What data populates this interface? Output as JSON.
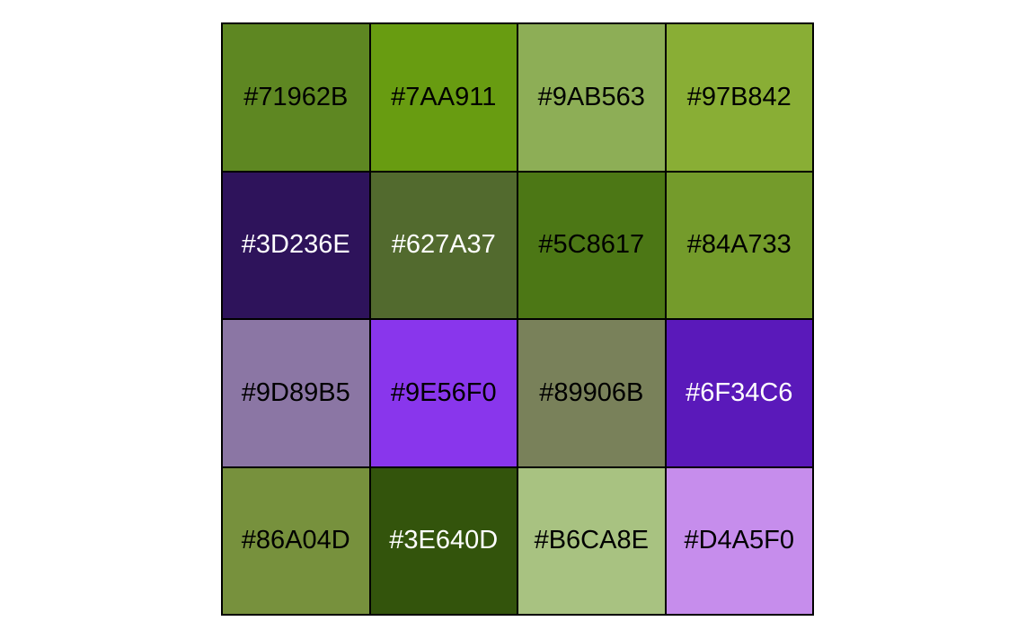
{
  "swatches": [
    {
      "label": "#71962B",
      "color": "#5E8722",
      "text_color": "#000000"
    },
    {
      "label": "#7AA911",
      "color": "#689C11",
      "text_color": "#000000"
    },
    {
      "label": "#9AB563",
      "color": "#8DAE56",
      "text_color": "#000000"
    },
    {
      "label": "#97B842",
      "color": "#89AE35",
      "text_color": "#000000"
    },
    {
      "label": "#3D236E",
      "color": "#2E135B",
      "text_color": "#FFFFFF"
    },
    {
      "label": "#627A37",
      "color": "#526A2E",
      "text_color": "#FFFFFF"
    },
    {
      "label": "#5C8617",
      "color": "#4C7715",
      "text_color": "#000000"
    },
    {
      "label": "#84A733",
      "color": "#749B2B",
      "text_color": "#000000"
    },
    {
      "label": "#9D89B5",
      "color": "#8B76A4",
      "text_color": "#000000"
    },
    {
      "label": "#9E56F0",
      "color": "#8936EC",
      "text_color": "#000000"
    },
    {
      "label": "#89906B",
      "color": "#79815A",
      "text_color": "#000000"
    },
    {
      "label": "#6F34C6",
      "color": "#5A19BA",
      "text_color": "#FFFFFF"
    },
    {
      "label": "#86A04D",
      "color": "#77913D",
      "text_color": "#000000"
    },
    {
      "label": "#3E640D",
      "color": "#33540C",
      "text_color": "#FFFFFF"
    },
    {
      "label": "#B6CA8E",
      "color": "#A8C281",
      "text_color": "#000000"
    },
    {
      "label": "#D4A5F0",
      "color": "#C68DEC",
      "text_color": "#000000"
    }
  ]
}
